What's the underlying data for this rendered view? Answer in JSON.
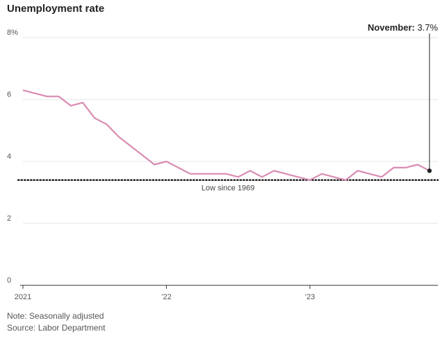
{
  "chart_data": {
    "type": "line",
    "title": "Unemployment rate",
    "x": [
      "2021-01",
      "2021-02",
      "2021-03",
      "2021-04",
      "2021-05",
      "2021-06",
      "2021-07",
      "2021-08",
      "2021-09",
      "2021-10",
      "2021-11",
      "2021-12",
      "2022-01",
      "2022-02",
      "2022-03",
      "2022-04",
      "2022-05",
      "2022-06",
      "2022-07",
      "2022-08",
      "2022-09",
      "2022-10",
      "2022-11",
      "2022-12",
      "2023-01",
      "2023-02",
      "2023-03",
      "2023-04",
      "2023-05",
      "2023-06",
      "2023-07",
      "2023-08",
      "2023-09",
      "2023-10",
      "2023-11"
    ],
    "series": [
      {
        "values": [
          6.3,
          6.2,
          6.1,
          6.1,
          5.8,
          5.9,
          5.4,
          5.2,
          4.8,
          4.5,
          4.2,
          3.9,
          4.0,
          3.8,
          3.6,
          3.6,
          3.6,
          3.6,
          3.5,
          3.7,
          3.5,
          3.7,
          3.6,
          3.5,
          3.4,
          3.6,
          3.5,
          3.4,
          3.7,
          3.6,
          3.5,
          3.8,
          3.8,
          3.9,
          3.7
        ],
        "color": "#d98bb2"
      }
    ],
    "ylim": [
      0,
      8
    ],
    "y_ticks": [
      "0",
      "2",
      "4",
      "6",
      "8%"
    ],
    "x_ticks": [
      {
        "x": "2021-01",
        "label": "2021"
      },
      {
        "x": "2022-01",
        "label": "’22"
      },
      {
        "x": "2023-01",
        "label": "’23"
      }
    ],
    "grid": true,
    "reference_line": {
      "value": 3.4,
      "label": "Low since 1969"
    },
    "annotation": {
      "x": "2023-11",
      "bold": "November:",
      "text": " 3.7%"
    }
  },
  "notes": {
    "note": "Note: Seasonally adjusted",
    "source": "Source: Labor Department"
  }
}
